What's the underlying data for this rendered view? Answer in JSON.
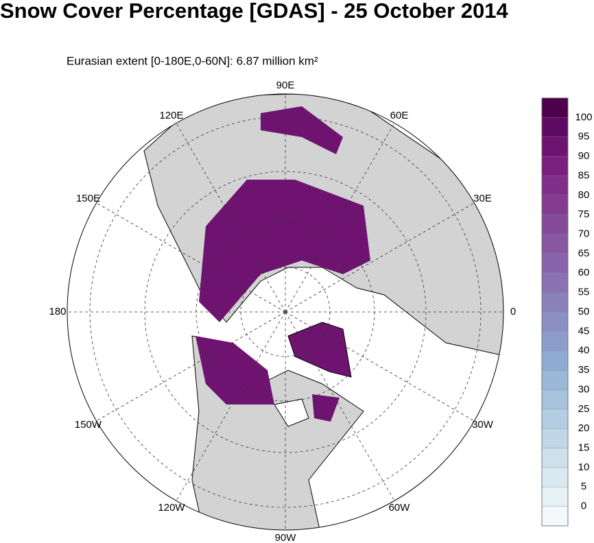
{
  "title": "Snow Cover Percentage [GDAS] - 25 October 2014",
  "subtitle": "Eurasian extent [0-180E,0-60N]:  6.87 million km²",
  "longitude_labels": [
    "90E",
    "60E",
    "30E",
    "0",
    "30W",
    "60W",
    "90W",
    "120W",
    "150W",
    "180",
    "150E",
    "120E"
  ],
  "colorbar": {
    "labels": [
      0,
      5,
      10,
      15,
      20,
      25,
      30,
      35,
      40,
      45,
      50,
      55,
      60,
      65,
      70,
      75,
      80,
      85,
      90,
      95,
      100
    ],
    "colors": [
      "#f3f9fa",
      "#e6f1f5",
      "#dae9f1",
      "#cee0ec",
      "#c1d7e8",
      "#b4cde3",
      "#a7c2dd",
      "#9ab8d8",
      "#8fabd2",
      "#8c9dcb",
      "#8b8fc3",
      "#8a81bb",
      "#8a72b2",
      "#8864aa",
      "#8757a2",
      "#864a9a",
      "#843c91",
      "#812e88",
      "#7a1f7e",
      "#6e1470",
      "#5f0a62",
      "#4d004b"
    ]
  }
}
